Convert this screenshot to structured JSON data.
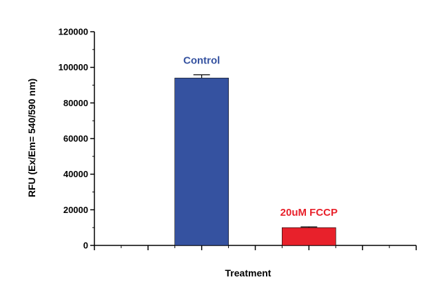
{
  "chart_data": {
    "type": "bar",
    "title": "",
    "xlabel": "Treatment",
    "ylabel": "RFU (Ex/Em= 540/590 nm)",
    "ylim": [
      0,
      120000
    ],
    "yticks": [
      0,
      20000,
      40000,
      60000,
      80000,
      100000,
      120000
    ],
    "grid": false,
    "categories": [
      "Control",
      "20uM FCCP"
    ],
    "values": [
      94000,
      10000
    ],
    "errors": [
      1800,
      400
    ],
    "colors": [
      "#3552a0",
      "#e8212b"
    ]
  }
}
